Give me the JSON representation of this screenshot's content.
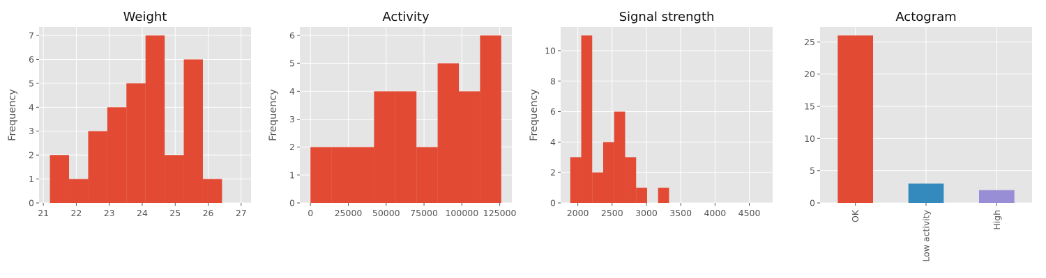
{
  "chart_data": [
    {
      "type": "bar",
      "subtype": "histogram",
      "title": "Weight",
      "ylabel": "Frequency",
      "xlabel": "",
      "bins": [
        {
          "x0": 21.2,
          "x1": 21.78,
          "count": 2
        },
        {
          "x0": 21.78,
          "x1": 22.36,
          "count": 1
        },
        {
          "x0": 22.36,
          "x1": 22.94,
          "count": 3
        },
        {
          "x0": 22.94,
          "x1": 23.52,
          "count": 4
        },
        {
          "x0": 23.52,
          "x1": 24.1,
          "count": 5
        },
        {
          "x0": 24.1,
          "x1": 24.68,
          "count": 7
        },
        {
          "x0": 24.68,
          "x1": 25.26,
          "count": 2
        },
        {
          "x0": 25.26,
          "x1": 25.84,
          "count": 6
        },
        {
          "x0": 25.84,
          "x1": 26.42,
          "count": 1
        }
      ],
      "xlim": [
        20.87,
        27.3
      ],
      "ylim": [
        0,
        7.35
      ],
      "xticks": [
        21,
        22,
        23,
        24,
        25,
        26,
        27
      ],
      "xtick_labels": [
        "21",
        "22",
        "23",
        "24",
        "25",
        "26",
        "27"
      ],
      "yticks": [
        0,
        1,
        2,
        3,
        4,
        5,
        6,
        7
      ],
      "ytick_labels": [
        "0",
        "1",
        "2",
        "3",
        "4",
        "5",
        "6",
        "7"
      ],
      "grid": true,
      "color": "#E24A33"
    },
    {
      "type": "bar",
      "subtype": "histogram",
      "title": "Activity",
      "ylabel": "Frequency",
      "xlabel": "",
      "bins": [
        {
          "x0": 0,
          "x1": 14000,
          "count": 2
        },
        {
          "x0": 14000,
          "x1": 28000,
          "count": 2
        },
        {
          "x0": 28000,
          "x1": 42000,
          "count": 2
        },
        {
          "x0": 42000,
          "x1": 56000,
          "count": 4
        },
        {
          "x0": 56000,
          "x1": 70000,
          "count": 4
        },
        {
          "x0": 70000,
          "x1": 84000,
          "count": 2
        },
        {
          "x0": 84000,
          "x1": 98000,
          "count": 5
        },
        {
          "x0": 98000,
          "x1": 112000,
          "count": 4
        },
        {
          "x0": 112000,
          "x1": 126000,
          "count": 6
        }
      ],
      "xlim": [
        -7000,
        133000
      ],
      "ylim": [
        0,
        6.3
      ],
      "xticks": [
        0,
        25000,
        50000,
        75000,
        100000,
        125000
      ],
      "xtick_labels": [
        "0",
        "25000",
        "50000",
        "75000",
        "100000",
        "125000"
      ],
      "yticks": [
        0,
        1,
        2,
        3,
        4,
        5,
        6
      ],
      "ytick_labels": [
        "0",
        "1",
        "2",
        "3",
        "4",
        "5",
        "6"
      ],
      "grid": true,
      "color": "#E24A33"
    },
    {
      "type": "bar",
      "subtype": "histogram",
      "title": "Signal strength",
      "ylabel": "Frequency",
      "xlabel": "",
      "bins": [
        {
          "x0": 1890,
          "x1": 2050,
          "count": 3
        },
        {
          "x0": 2050,
          "x1": 2210,
          "count": 11
        },
        {
          "x0": 2210,
          "x1": 2370,
          "count": 2
        },
        {
          "x0": 2370,
          "x1": 2530,
          "count": 4
        },
        {
          "x0": 2530,
          "x1": 2690,
          "count": 6
        },
        {
          "x0": 2690,
          "x1": 2850,
          "count": 3
        },
        {
          "x0": 2850,
          "x1": 3010,
          "count": 1
        },
        {
          "x0": 3010,
          "x1": 3170,
          "count": 0
        },
        {
          "x0": 3170,
          "x1": 3330,
          "count": 1
        }
      ],
      "xlim": [
        1750,
        4840
      ],
      "ylim": [
        0,
        11.55
      ],
      "xticks": [
        2000,
        2500,
        3000,
        3500,
        4000,
        4500
      ],
      "xtick_labels": [
        "2000",
        "2500",
        "3000",
        "3500",
        "4000",
        "4500"
      ],
      "yticks": [
        0,
        2,
        4,
        6,
        8,
        10
      ],
      "ytick_labels": [
        "0",
        "2",
        "4",
        "6",
        "8",
        "10"
      ],
      "grid": true,
      "color": "#E24A33"
    },
    {
      "type": "bar",
      "title": "Actogram",
      "ylabel": "",
      "xlabel": "",
      "categories": [
        "OK",
        "Low activity",
        "High"
      ],
      "values": [
        26,
        3,
        2
      ],
      "colors": [
        "#E24A33",
        "#348ABD",
        "#988ED5"
      ],
      "ylim": [
        0,
        27.3
      ],
      "yticks": [
        0,
        5,
        10,
        15,
        20,
        25
      ],
      "ytick_labels": [
        "0",
        "5",
        "10",
        "15",
        "20",
        "25"
      ],
      "xtick_rotation": 90,
      "grid": true
    }
  ],
  "style": {
    "plot_background": "#E5E5E5",
    "grid_color": "#FFFFFF",
    "tick_color": "#555555"
  }
}
